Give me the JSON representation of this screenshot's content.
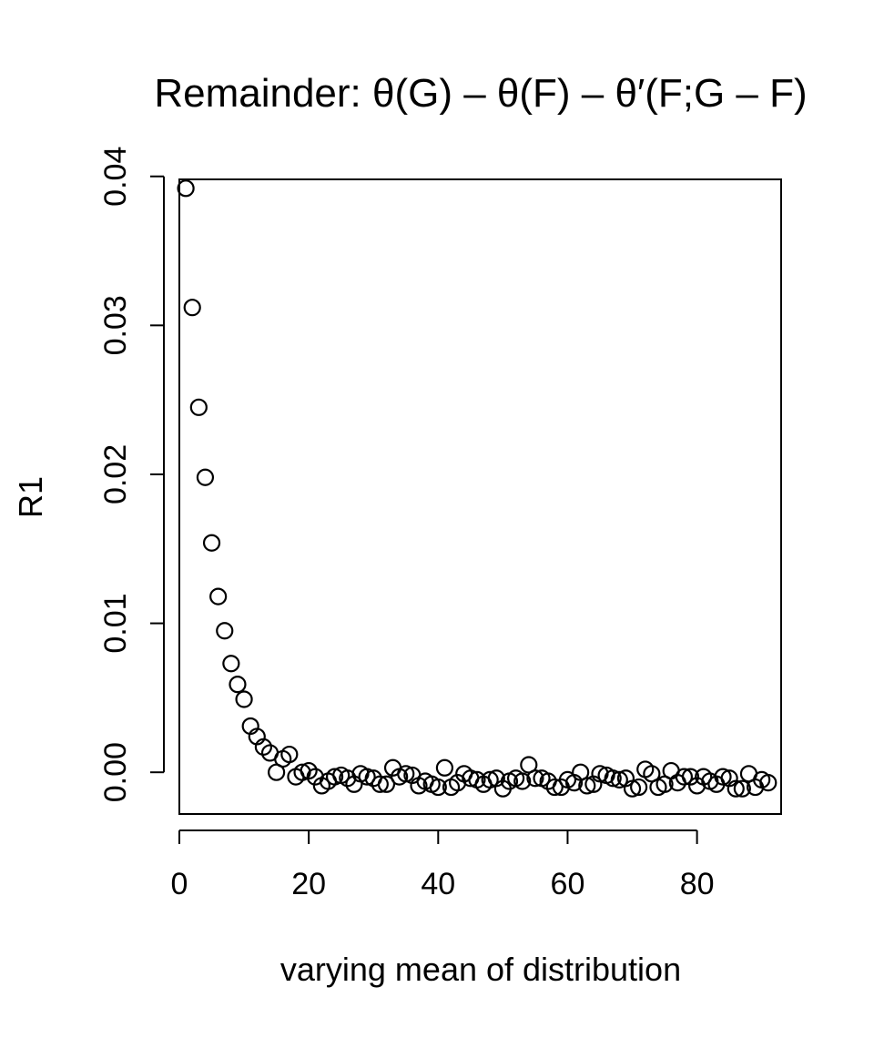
{
  "chart_data": {
    "type": "scatter",
    "title": "Remainder: θ(G) – θ(F) – θ′(F;G – F)",
    "xlabel": "varying mean of distribution",
    "ylabel": "R1",
    "xlim": [
      0,
      93
    ],
    "ylim": [
      -0.0028,
      0.0398
    ],
    "xticks": [
      0,
      20,
      40,
      60,
      80
    ],
    "xtick_labels": [
      "0",
      "20",
      "40",
      "60",
      "80"
    ],
    "yticks": [
      0.0,
      0.01,
      0.02,
      0.03,
      0.04
    ],
    "ytick_labels": [
      "0.00",
      "0.01",
      "0.02",
      "0.03",
      "0.04"
    ],
    "grid": false,
    "marker": "open-circle",
    "x": [
      1,
      2,
      3,
      4,
      5,
      6,
      7,
      8,
      9,
      10,
      11,
      12,
      13,
      14,
      15,
      16,
      17,
      18,
      19,
      20,
      21,
      22,
      23,
      24,
      25,
      26,
      27,
      28,
      29,
      30,
      31,
      32,
      33,
      34,
      35,
      36,
      37,
      38,
      39,
      40,
      41,
      42,
      43,
      44,
      45,
      46,
      47,
      48,
      49,
      50,
      51,
      52,
      53,
      54,
      55,
      56,
      57,
      58,
      59,
      60,
      61,
      62,
      63,
      64,
      65,
      66,
      67,
      68,
      69,
      70,
      71,
      72,
      73,
      74,
      75,
      76,
      77,
      78,
      79,
      80,
      81,
      82,
      83,
      84,
      85,
      86,
      87,
      88,
      89,
      90,
      91
    ],
    "y": [
      0.0392,
      0.0312,
      0.0245,
      0.0198,
      0.0154,
      0.0118,
      0.0095,
      0.0073,
      0.0059,
      0.0049,
      0.0031,
      0.0024,
      0.0017,
      0.0013,
      0.0,
      0.0009,
      0.0012,
      -0.0003,
      0.0,
      0.0001,
      -0.0003,
      -0.0009,
      -0.0006,
      -0.0003,
      -0.0002,
      -0.0004,
      -0.0008,
      -0.0001,
      -0.0003,
      -0.0004,
      -0.0008,
      -0.0008,
      0.0003,
      -0.0003,
      -0.0001,
      -0.0002,
      -0.0009,
      -0.0006,
      -0.0008,
      -0.001,
      0.0003,
      -0.001,
      -0.0007,
      -0.0001,
      -0.0004,
      -0.0005,
      -0.0008,
      -0.0005,
      -0.0004,
      -0.0011,
      -0.0006,
      -0.0004,
      -0.0006,
      0.0005,
      -0.0004,
      -0.0004,
      -0.0006,
      -0.001,
      -0.001,
      -0.0005,
      -0.0007,
      0.0,
      -0.0009,
      -0.0008,
      -0.0001,
      -0.0002,
      -0.0004,
      -0.0005,
      -0.0004,
      -0.0011,
      -0.001,
      0.0002,
      -0.0001,
      -0.001,
      -0.0008,
      0.0001,
      -0.0007,
      -0.0003,
      -0.0003,
      -0.0009,
      -0.0003,
      -0.0006,
      -0.0008,
      -0.0003,
      -0.0004,
      -0.0011,
      -0.0011,
      -0.0001,
      -0.001,
      -0.0005,
      -0.0007
    ]
  }
}
